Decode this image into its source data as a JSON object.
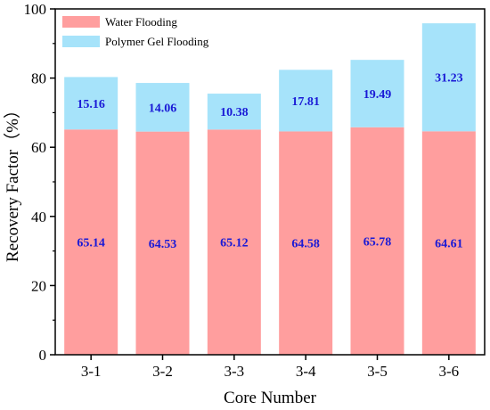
{
  "chart_data": {
    "type": "bar",
    "stacked": true,
    "categories": [
      "3-1",
      "3-2",
      "3-3",
      "3-4",
      "3-5",
      "3-6"
    ],
    "series": [
      {
        "name": "Water Flooding",
        "values": [
          65.14,
          64.53,
          65.12,
          64.58,
          65.78,
          64.61
        ],
        "color": "#ff9e9e"
      },
      {
        "name": "Polymer Gel Flooding",
        "values": [
          15.16,
          14.06,
          10.38,
          17.81,
          19.49,
          31.23
        ],
        "color": "#a6e3fa"
      }
    ],
    "data_labels": {
      "water": [
        "65.14",
        "64.53",
        "65.12",
        "64.58",
        "65.78",
        "64.61"
      ],
      "gel": [
        "15.16",
        "14.06",
        "10.38",
        "17.81",
        "19.49",
        "31.23"
      ]
    },
    "xlabel": "Core Number",
    "ylabel": "Recovery Factor（%）",
    "ylim": [
      0,
      100
    ],
    "yticks": [
      "0",
      "20",
      "40",
      "60",
      "80",
      "100"
    ],
    "legend_position": "top-left",
    "grid": false,
    "label_color": "#1a1ad6"
  }
}
